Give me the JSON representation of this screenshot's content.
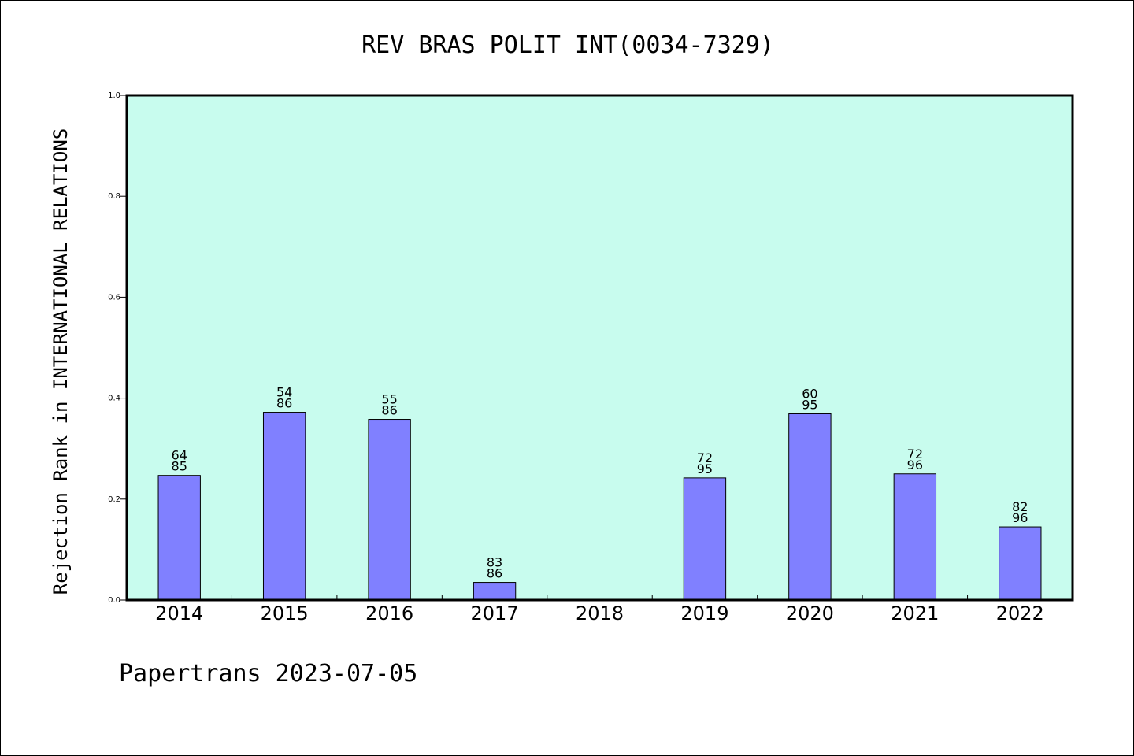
{
  "chart_data": {
    "type": "bar",
    "title": "REV BRAS POLIT INT(0034-7329)",
    "ylabel": "Rejection Rank in INTERNATIONAL RELATIONS",
    "xlabel": "",
    "ylim": [
      0,
      1.0
    ],
    "yticks": [
      "0.0",
      "0.2",
      "0.4",
      "0.6",
      "0.8",
      "1.0"
    ],
    "categories": [
      "2014",
      "2015",
      "2016",
      "2017",
      "2018",
      "2019",
      "2020",
      "2021",
      "2022"
    ],
    "values": [
      0.247,
      0.372,
      0.358,
      0.035,
      null,
      0.242,
      0.369,
      0.25,
      0.145
    ],
    "bar_labels": [
      [
        "64",
        "85"
      ],
      [
        "54",
        "86"
      ],
      [
        "55",
        "86"
      ],
      [
        "83",
        "86"
      ],
      null,
      [
        "72",
        "95"
      ],
      [
        "60",
        "95"
      ],
      [
        "72",
        "96"
      ],
      [
        "82",
        "96"
      ]
    ],
    "grid": false,
    "plot_background": "#c8fcee",
    "bar_color": "#8080ff"
  },
  "footer": "Papertrans 2023-07-05"
}
